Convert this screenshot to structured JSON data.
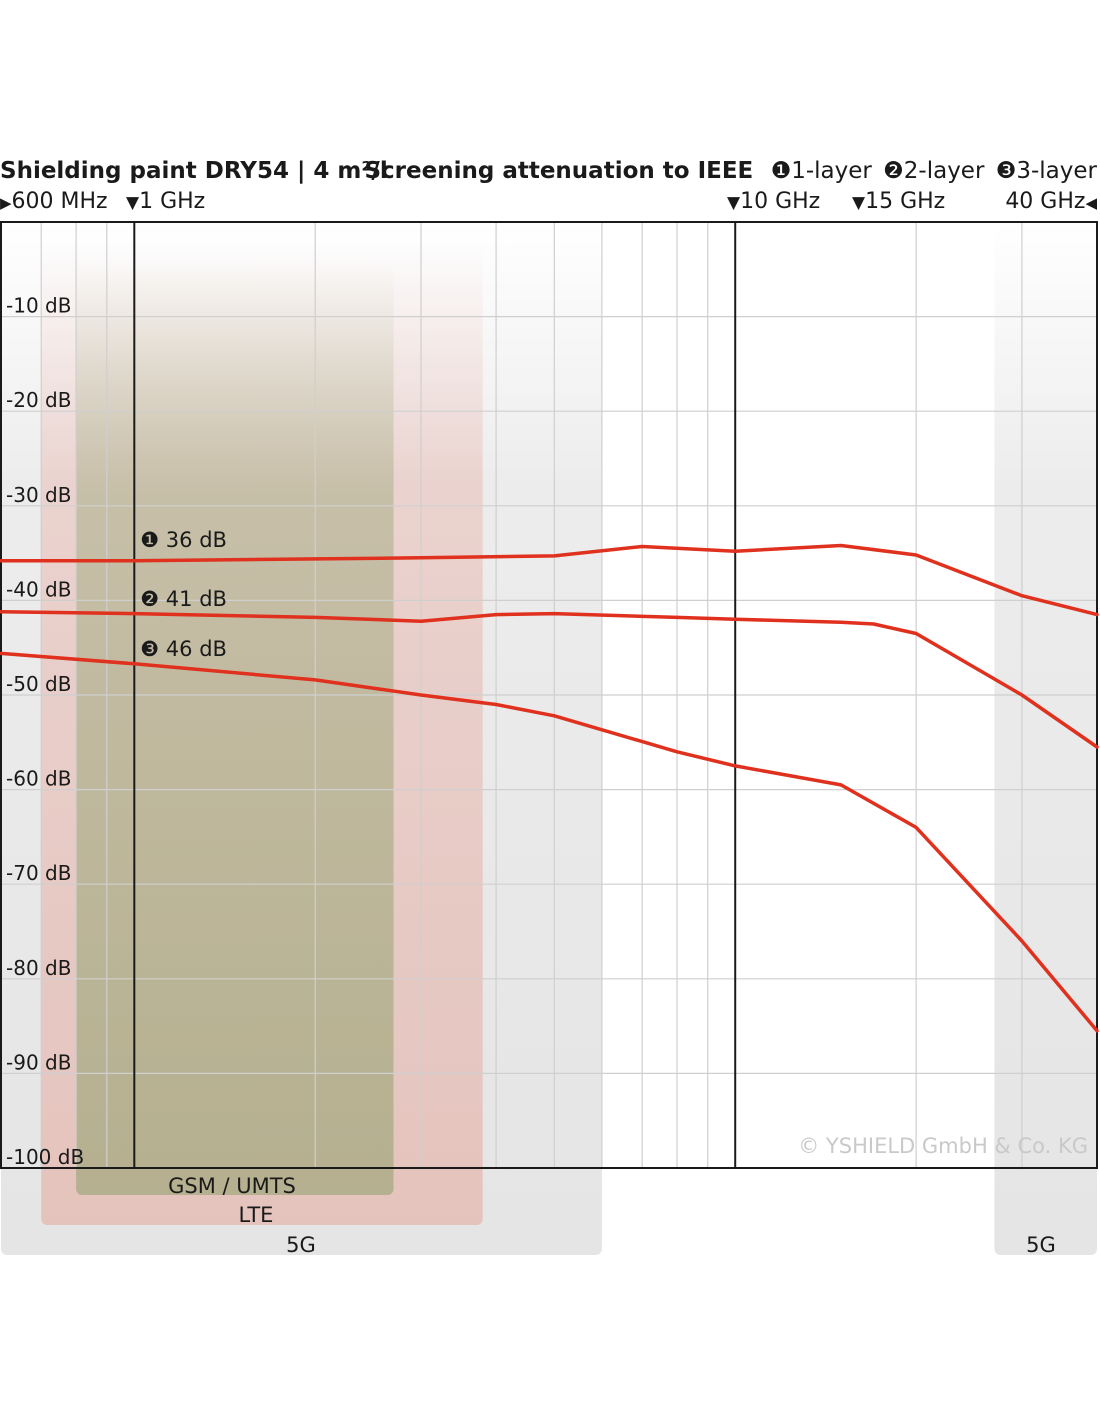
{
  "header": {
    "title": "Shielding paint DRY54 | 4 m²/l",
    "legend_title": "Screening attenuation to IEEE",
    "legend_items": [
      {
        "mark": "❶",
        "label": "1-layer"
      },
      {
        "mark": "❷",
        "label": "2-layer"
      },
      {
        "mark": "❸",
        "label": "3-layer"
      }
    ]
  },
  "markers": [
    {
      "label": "600 MHz",
      "glyph": "▶"
    },
    {
      "label": "1 GHz",
      "glyph": "▼"
    },
    {
      "label": "10 GHz",
      "glyph": "▼"
    },
    {
      "label": "15 GHz",
      "glyph": "▼"
    },
    {
      "label": "40 GHz",
      "glyph": "◀"
    }
  ],
  "copyright": "© YSHIELD GmbH & Co. KG",
  "chart_data": {
    "type": "line",
    "xscale": "log",
    "xlim_ghz": [
      0.6,
      40
    ],
    "ylim": [
      -100,
      0
    ],
    "grid": true,
    "y_ticks": [
      {
        "value": -10,
        "label": "-10 dB"
      },
      {
        "value": -20,
        "label": "-20 dB"
      },
      {
        "value": -30,
        "label": "-30 dB"
      },
      {
        "value": -40,
        "label": "-40 dB"
      },
      {
        "value": -50,
        "label": "-50 dB"
      },
      {
        "value": -60,
        "label": "-60 dB"
      },
      {
        "value": -70,
        "label": "-70 dB"
      },
      {
        "value": -80,
        "label": "-80 dB"
      },
      {
        "value": -90,
        "label": "-90 dB"
      },
      {
        "value": -100,
        "label": "-100 dB"
      }
    ],
    "reference_lines_ghz": [
      1,
      10
    ],
    "line_color": "#e0301e",
    "series": [
      {
        "label": "❶ 36 dB",
        "points": [
          [
            0.6,
            -35.8
          ],
          [
            1,
            -35.8
          ],
          [
            3,
            -35.5
          ],
          [
            5,
            -35.3
          ],
          [
            7,
            -34.3
          ],
          [
            10,
            -34.8
          ],
          [
            15,
            -34.2
          ],
          [
            20,
            -35.2
          ],
          [
            30,
            -39.5
          ],
          [
            40,
            -41.5
          ]
        ]
      },
      {
        "label": "❷ 41 dB",
        "points": [
          [
            0.6,
            -41.2
          ],
          [
            1,
            -41.4
          ],
          [
            2,
            -41.8
          ],
          [
            3,
            -42.2
          ],
          [
            4,
            -41.5
          ],
          [
            5,
            -41.4
          ],
          [
            8,
            -41.8
          ],
          [
            10,
            -42
          ],
          [
            15,
            -42.3
          ],
          [
            17,
            -42.5
          ],
          [
            20,
            -43.5
          ],
          [
            30,
            -50
          ],
          [
            40,
            -55.5
          ]
        ]
      },
      {
        "label": "❸ 46 dB",
        "points": [
          [
            0.6,
            -45.6
          ],
          [
            1,
            -46.7
          ],
          [
            2,
            -48.4
          ],
          [
            3,
            -50
          ],
          [
            4,
            -51
          ],
          [
            5,
            -52.2
          ],
          [
            8,
            -56
          ],
          [
            10,
            -57.5
          ],
          [
            15,
            -59.5
          ],
          [
            20,
            -64
          ],
          [
            30,
            -76
          ],
          [
            40,
            -85.5
          ]
        ]
      }
    ],
    "bands": [
      {
        "label": "GSM / UMTS",
        "from_ghz": 0.8,
        "to_ghz": 2.7,
        "color": "#8ea06a"
      },
      {
        "label": "LTE",
        "from_ghz": 0.7,
        "to_ghz": 3.8,
        "color": "#e59a8c"
      },
      {
        "label": "5G",
        "from_ghz": 0.6,
        "to_ghz": 6,
        "color": "#cfcfcf"
      },
      {
        "label": "5G",
        "from_ghz": 27,
        "to_ghz": 40,
        "color": "#cfcfcf"
      }
    ]
  }
}
